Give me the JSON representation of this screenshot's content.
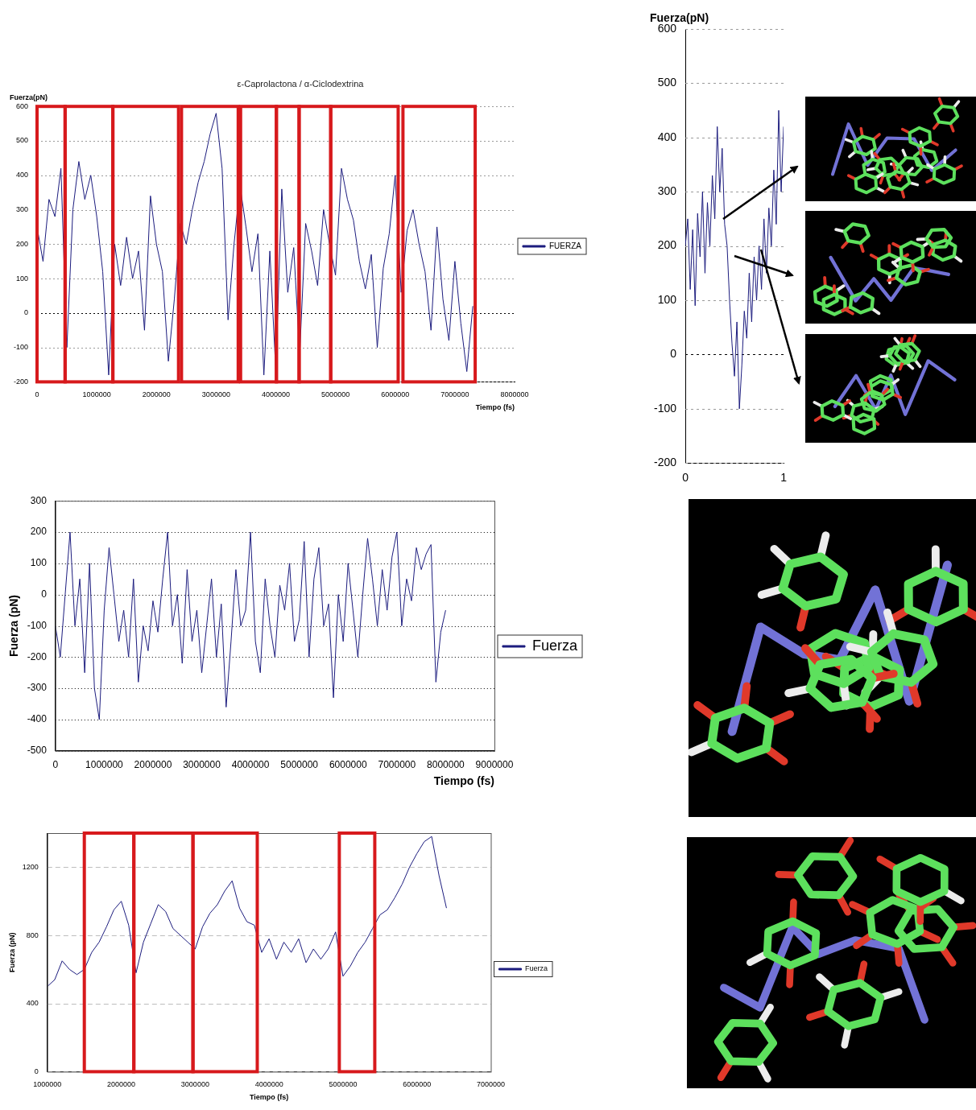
{
  "chart_data": [
    {
      "type": "line",
      "title": "ε-Caprolactona / α-Ciclodextrina",
      "y_label": "Fuerza(pN)",
      "x_label": "Tiempo (fs)",
      "xlim": [
        0,
        8000000
      ],
      "xticks": [
        0,
        1000000,
        2000000,
        3000000,
        4000000,
        5000000,
        6000000,
        7000000,
        8000000
      ],
      "ylim": [
        -200,
        600
      ],
      "yticks": [
        -200,
        -100,
        0,
        100,
        200,
        300,
        400,
        500,
        600
      ],
      "grid": true,
      "legend": "right",
      "x": [
        0,
        100000,
        200000,
        300000,
        400000,
        500000,
        600000,
        700000,
        800000,
        900000,
        1000000,
        1100000,
        1200000,
        1300000,
        1400000,
        1500000,
        1600000,
        1700000,
        1800000,
        1900000,
        2000000,
        2100000,
        2200000,
        2300000,
        2400000,
        2500000,
        2600000,
        2700000,
        2800000,
        2900000,
        3000000,
        3100000,
        3200000,
        3300000,
        3400000,
        3500000,
        3600000,
        3700000,
        3800000,
        3900000,
        4000000,
        4100000,
        4200000,
        4300000,
        4400000,
        4500000,
        4600000,
        4700000,
        4800000,
        4900000,
        5000000,
        5100000,
        5200000,
        5300000,
        5400000,
        5500000,
        5600000,
        5700000,
        5800000,
        5900000,
        6000000,
        6100000,
        6200000,
        6300000,
        6400000,
        6500000,
        6600000,
        6700000,
        6800000,
        6900000,
        7000000,
        7100000,
        7200000,
        7300000
      ],
      "series": [
        {
          "name": "FUERZA",
          "color": "#1c1c7e",
          "values": [
            250,
            150,
            330,
            280,
            420,
            -100,
            300,
            440,
            330,
            400,
            280,
            120,
            -180,
            200,
            80,
            220,
            100,
            180,
            -50,
            340,
            200,
            120,
            -140,
            40,
            260,
            200,
            300,
            380,
            440,
            520,
            580,
            420,
            -20,
            200,
            370,
            250,
            120,
            230,
            -180,
            180,
            -170,
            360,
            60,
            190,
            -120,
            260,
            180,
            80,
            300,
            200,
            110,
            420,
            330,
            270,
            150,
            70,
            170,
            -100,
            130,
            230,
            400,
            60,
            240,
            300,
            200,
            120,
            -50,
            250,
            40,
            -80,
            150,
            -30,
            -170,
            20
          ]
        }
      ],
      "boxes": [
        [
          0,
          470000
        ],
        [
          470000,
          1270000
        ],
        [
          1270000,
          2370000
        ],
        [
          2420000,
          3370000
        ],
        [
          3410000,
          4010000
        ],
        [
          4010000,
          4390000
        ],
        [
          4390000,
          4920000
        ],
        [
          4920000,
          6050000
        ],
        [
          6130000,
          7340000
        ]
      ]
    },
    {
      "type": "line",
      "y_label": "Fuerza(pN)",
      "xlim": [
        0,
        1
      ],
      "xticks": [
        0,
        1
      ],
      "ylim": [
        -200,
        600
      ],
      "yticks": [
        -200,
        -100,
        0,
        100,
        200,
        300,
        400,
        500,
        600
      ],
      "grid": true,
      "x": [
        0,
        0.025,
        0.05,
        0.075,
        0.1,
        0.125,
        0.15,
        0.175,
        0.2,
        0.225,
        0.25,
        0.275,
        0.3,
        0.325,
        0.35,
        0.375,
        0.4,
        0.425,
        0.45,
        0.475,
        0.5,
        0.525,
        0.55,
        0.575,
        0.6,
        0.625,
        0.65,
        0.675,
        0.7,
        0.725,
        0.75,
        0.775,
        0.8,
        0.825,
        0.85,
        0.875,
        0.9,
        0.925,
        0.95,
        0.975,
        1
      ],
      "series": [
        {
          "color": "#1c1c7e",
          "values": [
            200,
            250,
            120,
            230,
            90,
            260,
            180,
            300,
            150,
            280,
            200,
            330,
            250,
            420,
            300,
            380,
            240,
            200,
            100,
            20,
            -40,
            60,
            -100,
            -20,
            80,
            30,
            150,
            60,
            180,
            100,
            200,
            120,
            250,
            150,
            270,
            200,
            340,
            240,
            450,
            300,
            420
          ]
        }
      ]
    },
    {
      "type": "line",
      "y_label": "Fuerza (pN)",
      "x_label": "Tiempo (fs)",
      "xlim": [
        0,
        9000000
      ],
      "xticks": [
        0,
        1000000,
        2000000,
        3000000,
        4000000,
        5000000,
        6000000,
        7000000,
        8000000,
        9000000
      ],
      "ylim": [
        -500,
        300
      ],
      "yticks": [
        -500,
        -400,
        -300,
        -200,
        -100,
        0,
        100,
        200,
        300
      ],
      "grid": true,
      "legend": "right",
      "x": [
        0,
        100000,
        200000,
        300000,
        400000,
        500000,
        600000,
        700000,
        800000,
        900000,
        1000000,
        1100000,
        1200000,
        1300000,
        1400000,
        1500000,
        1600000,
        1700000,
        1800000,
        1900000,
        2000000,
        2100000,
        2200000,
        2300000,
        2400000,
        2500000,
        2600000,
        2700000,
        2800000,
        2900000,
        3000000,
        3100000,
        3200000,
        3300000,
        3400000,
        3500000,
        3600000,
        3700000,
        3800000,
        3900000,
        4000000,
        4100000,
        4200000,
        4300000,
        4400000,
        4500000,
        4600000,
        4700000,
        4800000,
        4900000,
        5000000,
        5100000,
        5200000,
        5300000,
        5400000,
        5500000,
        5600000,
        5700000,
        5800000,
        5900000,
        6000000,
        6100000,
        6200000,
        6300000,
        6400000,
        6500000,
        6600000,
        6700000,
        6800000,
        6900000,
        7000000,
        7100000,
        7200000,
        7300000,
        7400000,
        7500000,
        7600000,
        7700000,
        7800000,
        7900000,
        8000000
      ],
      "series": [
        {
          "name": "Fuerza",
          "color": "#1c1c7e",
          "values": [
            -100,
            -200,
            0,
            200,
            -100,
            50,
            -250,
            100,
            -300,
            -400,
            -50,
            150,
            0,
            -150,
            -50,
            -200,
            50,
            -280,
            -100,
            -180,
            -20,
            -120,
            50,
            200,
            -100,
            0,
            -220,
            80,
            -150,
            -50,
            -250,
            -100,
            50,
            -200,
            -30,
            -360,
            -150,
            80,
            -100,
            -50,
            200,
            -150,
            -250,
            50,
            -100,
            -200,
            30,
            -50,
            100,
            -150,
            -80,
            170,
            -200,
            50,
            150,
            -100,
            -30,
            -330,
            0,
            -150,
            100,
            -50,
            -200,
            0,
            180,
            50,
            -100,
            80,
            -50,
            120,
            200,
            -100,
            50,
            -20,
            150,
            80,
            130,
            160,
            -280,
            -120,
            -50
          ]
        }
      ]
    },
    {
      "type": "line",
      "y_label": "Fuerza (pN)",
      "x_label": "Tiempo (fs)",
      "xlim": [
        1000000,
        7000000
      ],
      "xticks": [
        1000000,
        2000000,
        3000000,
        4000000,
        5000000,
        6000000,
        7000000
      ],
      "ylim": [
        0,
        1400
      ],
      "yticks": [
        0,
        400,
        800,
        1200
      ],
      "grid": true,
      "legend": "right",
      "x": [
        1000000,
        1100000,
        1200000,
        1300000,
        1400000,
        1500000,
        1600000,
        1700000,
        1800000,
        1900000,
        2000000,
        2100000,
        2200000,
        2300000,
        2400000,
        2500000,
        2600000,
        2700000,
        2800000,
        2900000,
        3000000,
        3100000,
        3200000,
        3300000,
        3400000,
        3500000,
        3600000,
        3700000,
        3800000,
        3900000,
        4000000,
        4100000,
        4200000,
        4300000,
        4400000,
        4500000,
        4600000,
        4700000,
        4800000,
        4900000,
        5000000,
        5100000,
        5200000,
        5300000,
        5400000,
        5500000,
        5600000,
        5700000,
        5800000,
        5900000,
        6000000,
        6100000,
        6200000,
        6300000,
        6400000
      ],
      "series": [
        {
          "name": "Fuerza",
          "color": "#1c1c7e",
          "values": [
            500,
            540,
            650,
            600,
            570,
            600,
            700,
            760,
            850,
            950,
            1000,
            860,
            580,
            760,
            870,
            980,
            940,
            840,
            800,
            760,
            720,
            850,
            930,
            980,
            1060,
            1120,
            960,
            880,
            860,
            700,
            780,
            660,
            760,
            700,
            780,
            640,
            720,
            660,
            720,
            820,
            560,
            620,
            700,
            760,
            840,
            920,
            950,
            1020,
            1100,
            1200,
            1280,
            1350,
            1380,
            1150,
            960
          ]
        }
      ],
      "boxes": [
        [
          1500000,
          2170000
        ],
        [
          2170000,
          2970000
        ],
        [
          2970000,
          3840000
        ],
        [
          4950000,
          5430000
        ]
      ]
    }
  ]
}
